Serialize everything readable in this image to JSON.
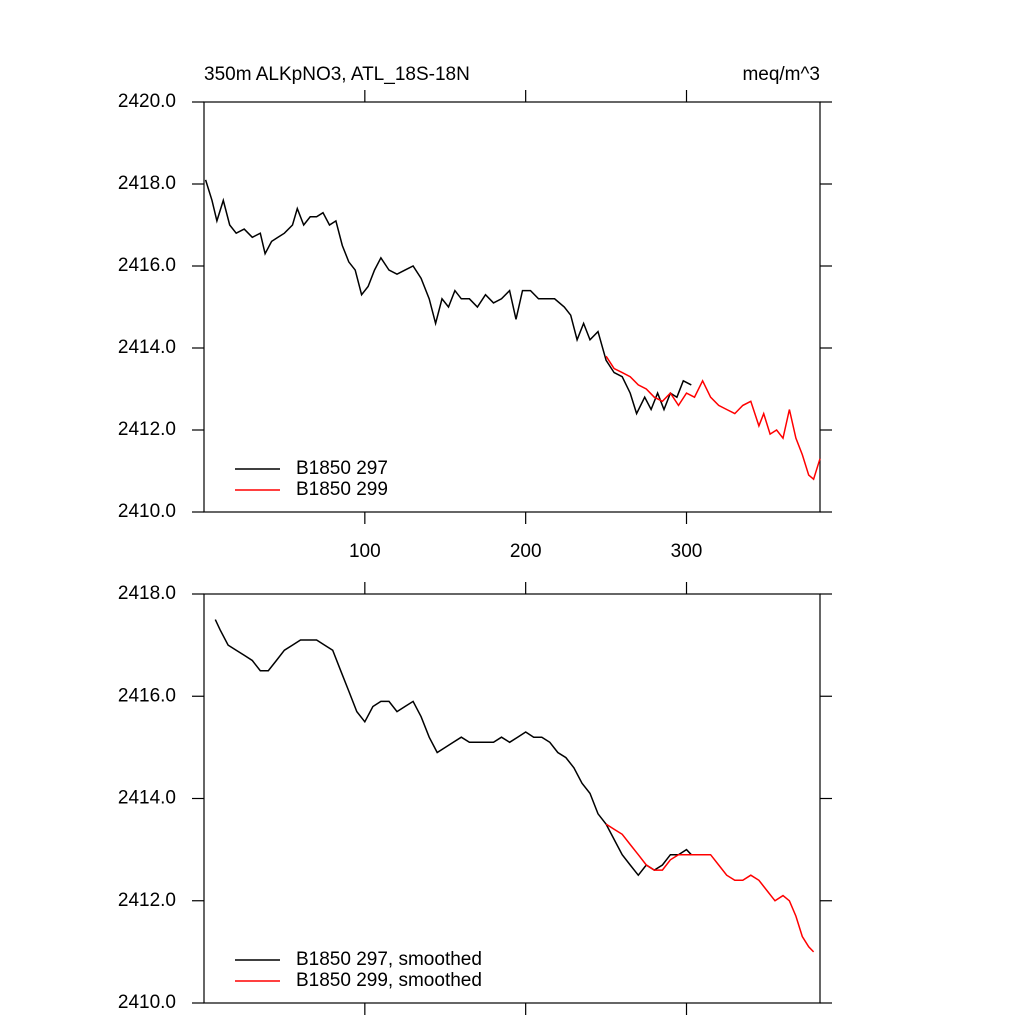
{
  "chart_data": [
    {
      "type": "line",
      "title": "350m ALKpNO3, ATL_18S-18N",
      "units": "meq/m^3",
      "xlim": [
        0,
        383
      ],
      "xticks": [
        100,
        200,
        300
      ],
      "show_xtick_labels": true,
      "ylim": [
        2410,
        2420
      ],
      "yticks": [
        {
          "value": 2410,
          "label": "2410.0"
        },
        {
          "value": 2412,
          "label": "2412.0"
        },
        {
          "value": 2414,
          "label": "2414.0"
        },
        {
          "value": 2416,
          "label": "2416.0"
        },
        {
          "value": 2418,
          "label": "2418.0"
        },
        {
          "value": 2420,
          "label": "2420.0"
        }
      ],
      "legend": "lower left",
      "series": [
        {
          "name": "B1850 297",
          "color": "#000000",
          "x": [
            1,
            5,
            8,
            12,
            16,
            20,
            25,
            30,
            35,
            38,
            42,
            46,
            50,
            55,
            58,
            62,
            66,
            70,
            74,
            78,
            82,
            86,
            90,
            94,
            98,
            102,
            106,
            110,
            115,
            120,
            125,
            130,
            135,
            140,
            144,
            148,
            152,
            156,
            160,
            165,
            170,
            175,
            180,
            185,
            190,
            194,
            198,
            203,
            208,
            212,
            218,
            224,
            228,
            232,
            236,
            240,
            245,
            250,
            255,
            260,
            265,
            269,
            274,
            278,
            282,
            286,
            290,
            294,
            298,
            303
          ],
          "values": [
            2418.1,
            2417.6,
            2417.1,
            2417.6,
            2417.0,
            2416.8,
            2416.9,
            2416.7,
            2416.8,
            2416.3,
            2416.6,
            2416.7,
            2416.8,
            2417.0,
            2417.4,
            2417.0,
            2417.2,
            2417.2,
            2417.3,
            2417.0,
            2417.1,
            2416.5,
            2416.1,
            2415.9,
            2415.3,
            2415.5,
            2415.9,
            2416.2,
            2415.9,
            2415.8,
            2415.9,
            2416.0,
            2415.7,
            2415.2,
            2414.6,
            2415.2,
            2415.0,
            2415.4,
            2415.2,
            2415.2,
            2415.0,
            2415.3,
            2415.1,
            2415.2,
            2415.4,
            2414.7,
            2415.4,
            2415.4,
            2415.2,
            2415.2,
            2415.2,
            2415.0,
            2414.8,
            2414.2,
            2414.6,
            2414.2,
            2414.4,
            2413.7,
            2413.4,
            2413.3,
            2412.9,
            2412.4,
            2412.8,
            2412.5,
            2412.9,
            2412.5,
            2412.9,
            2412.8,
            2413.2,
            2413.1
          ]
        },
        {
          "name": "B1850 299",
          "color": "#ff0000",
          "x": [
            250,
            255,
            260,
            265,
            270,
            275,
            280,
            285,
            290,
            295,
            300,
            305,
            310,
            315,
            320,
            325,
            330,
            335,
            340,
            345,
            348,
            352,
            356,
            360,
            364,
            368,
            372,
            376,
            379,
            383
          ],
          "values": [
            2413.8,
            2413.5,
            2413.4,
            2413.3,
            2413.1,
            2413.0,
            2412.8,
            2412.7,
            2412.9,
            2412.6,
            2412.9,
            2412.8,
            2413.2,
            2412.8,
            2412.6,
            2412.5,
            2412.4,
            2412.6,
            2412.7,
            2412.1,
            2412.4,
            2411.9,
            2412.0,
            2411.8,
            2412.5,
            2411.8,
            2411.4,
            2410.9,
            2410.8,
            2411.3
          ]
        }
      ]
    },
    {
      "type": "line",
      "xlim": [
        0,
        383
      ],
      "xticks": [
        100,
        200,
        300
      ],
      "show_xtick_labels": false,
      "ylim": [
        2410,
        2418
      ],
      "yticks": [
        {
          "value": 2410,
          "label": "2410.0"
        },
        {
          "value": 2412,
          "label": "2412.0"
        },
        {
          "value": 2414,
          "label": "2414.0"
        },
        {
          "value": 2416,
          "label": "2416.0"
        },
        {
          "value": 2418,
          "label": "2418.0"
        }
      ],
      "legend": "lower left",
      "series": [
        {
          "name": "B1850 297, smoothed",
          "color": "#000000",
          "x": [
            7,
            10,
            15,
            20,
            25,
            30,
            35,
            40,
            45,
            50,
            55,
            60,
            65,
            70,
            75,
            80,
            85,
            90,
            95,
            100,
            105,
            110,
            115,
            120,
            125,
            130,
            135,
            140,
            145,
            150,
            155,
            160,
            165,
            170,
            175,
            180,
            185,
            190,
            195,
            200,
            205,
            210,
            215,
            220,
            225,
            230,
            235,
            240,
            245,
            250,
            255,
            260,
            265,
            270,
            275,
            280,
            285,
            290,
            295,
            300,
            303
          ],
          "values": [
            2417.5,
            2417.3,
            2417.0,
            2416.9,
            2416.8,
            2416.7,
            2416.5,
            2416.5,
            2416.7,
            2416.9,
            2417.0,
            2417.1,
            2417.1,
            2417.1,
            2417.0,
            2416.9,
            2416.5,
            2416.1,
            2415.7,
            2415.5,
            2415.8,
            2415.9,
            2415.9,
            2415.7,
            2415.8,
            2415.9,
            2415.6,
            2415.2,
            2414.9,
            2415.0,
            2415.1,
            2415.2,
            2415.1,
            2415.1,
            2415.1,
            2415.1,
            2415.2,
            2415.1,
            2415.2,
            2415.3,
            2415.2,
            2415.2,
            2415.1,
            2414.9,
            2414.8,
            2414.6,
            2414.3,
            2414.1,
            2413.7,
            2413.5,
            2413.2,
            2412.9,
            2412.7,
            2412.5,
            2412.7,
            2412.6,
            2412.7,
            2412.9,
            2412.9,
            2413.0,
            2412.9
          ]
        },
        {
          "name": "B1850 299, smoothed",
          "color": "#ff0000",
          "x": [
            250,
            255,
            260,
            265,
            270,
            275,
            280,
            285,
            290,
            295,
            300,
            305,
            310,
            315,
            320,
            325,
            330,
            335,
            340,
            345,
            350,
            355,
            360,
            364,
            368,
            372,
            376,
            379
          ],
          "values": [
            2413.5,
            2413.4,
            2413.3,
            2413.1,
            2412.9,
            2412.7,
            2412.6,
            2412.6,
            2412.8,
            2412.9,
            2412.9,
            2412.9,
            2412.9,
            2412.9,
            2412.7,
            2412.5,
            2412.4,
            2412.4,
            2412.5,
            2412.4,
            2412.2,
            2412.0,
            2412.1,
            2412.0,
            2411.7,
            2411.3,
            2411.1,
            2411.0
          ]
        }
      ]
    }
  ]
}
